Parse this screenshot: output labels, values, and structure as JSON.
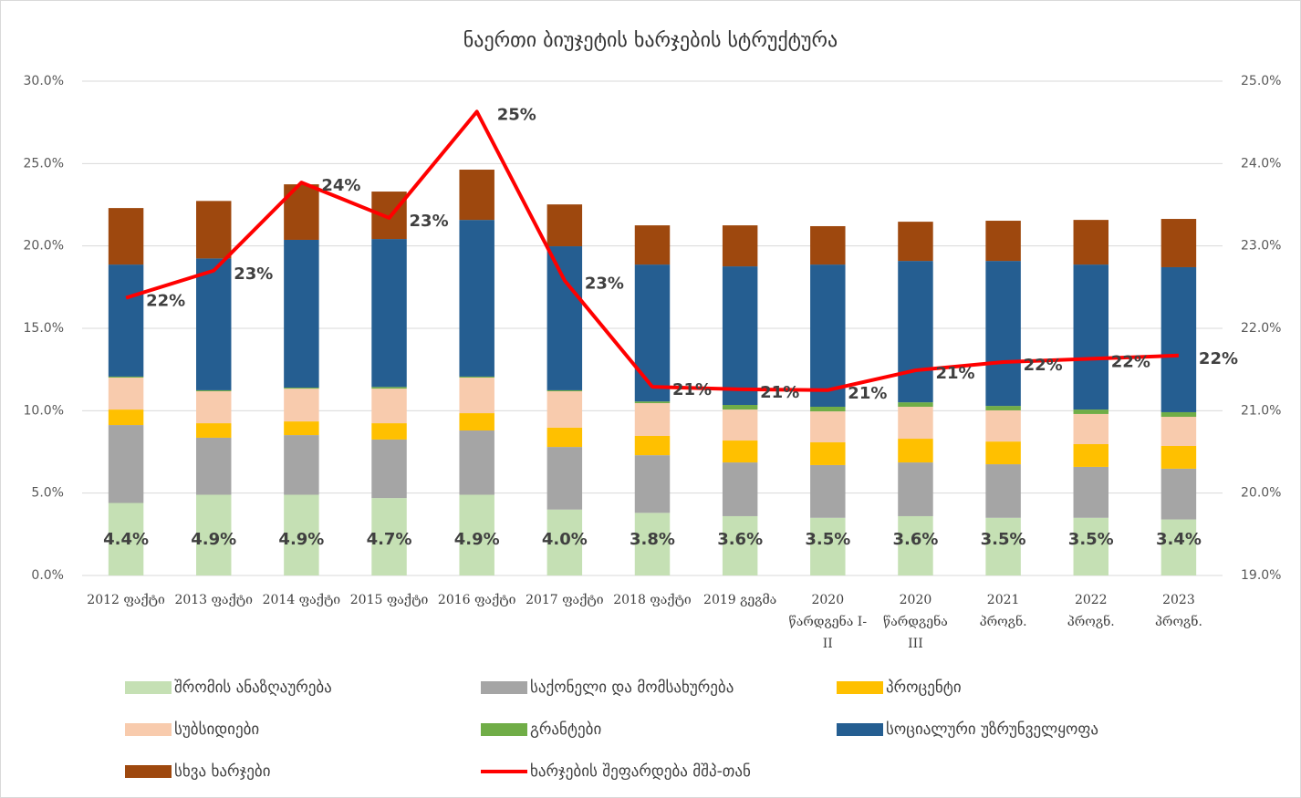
{
  "chart_data": {
    "type": "bar",
    "stacked": true,
    "title": "ნაერთი ბიუჯეტის ხარჯების სტრუქტურა",
    "categories": [
      "2012 ფაქტი",
      "2013 ფაქტი",
      "2014 ფაქტი",
      "2015 ფაქტი",
      "2016 ფაქტი",
      "2017 ფაქტი",
      "2018 ფაქტი",
      "2019 გეგმა",
      "2020 წარდგენა I-II",
      "2020 წარდგენა III",
      "2021 პროგნ.",
      "2022 პროგნ.",
      "2023 პროგნ."
    ],
    "series": [
      {
        "name": "შრომის ანაზღაურება",
        "color": "#c5e0b4",
        "values": [
          4.4,
          4.9,
          4.9,
          4.7,
          4.9,
          4.0,
          3.8,
          3.6,
          3.5,
          3.6,
          3.5,
          3.5,
          3.4
        ],
        "value_labels": [
          "4.4%",
          "4.9%",
          "4.9%",
          "4.7%",
          "4.9%",
          "4.0%",
          "3.8%",
          "3.6%",
          "3.5%",
          "3.6%",
          "3.5%",
          "3.5%",
          "3.4%"
        ]
      },
      {
        "name": "საქონელი და მომსახურება",
        "color": "#a5a5a5",
        "values": [
          4.73,
          3.46,
          3.62,
          3.55,
          3.9,
          3.8,
          3.5,
          3.26,
          3.2,
          3.26,
          3.25,
          3.09,
          3.08
        ]
      },
      {
        "name": "პროცენტი",
        "color": "#ffc000",
        "values": [
          0.94,
          0.88,
          0.83,
          0.99,
          1.05,
          1.17,
          1.17,
          1.33,
          1.38,
          1.44,
          1.38,
          1.38,
          1.38
        ]
      },
      {
        "name": "სუბსიდიები",
        "color": "#f8cbad",
        "values": [
          1.94,
          1.94,
          1.99,
          2.1,
          2.16,
          2.21,
          1.99,
          1.88,
          1.88,
          1.94,
          1.89,
          1.83,
          1.77
        ]
      },
      {
        "name": "გრანტები",
        "color": "#70ad47",
        "values": [
          0.06,
          0.06,
          0.06,
          0.1,
          0.06,
          0.06,
          0.1,
          0.28,
          0.28,
          0.27,
          0.27,
          0.27,
          0.28
        ]
      },
      {
        "name": "სოციალური უზრუნველყოფა",
        "color": "#255e91",
        "values": [
          6.8,
          8.0,
          8.97,
          8.98,
          9.51,
          8.74,
          8.31,
          8.41,
          8.63,
          8.58,
          8.8,
          8.8,
          8.8
        ]
      },
      {
        "name": "სხვა ხარჯები",
        "color": "#9e480e",
        "values": [
          3.43,
          3.49,
          3.37,
          2.88,
          3.05,
          2.54,
          2.38,
          2.49,
          2.33,
          2.38,
          2.44,
          2.71,
          2.93
        ]
      },
      {
        "name": "ხარჯების შეფარდება მშპ-თან",
        "color": "#ff0000",
        "type": "line",
        "axis": "y2",
        "values": [
          22.37,
          22.7,
          23.77,
          23.34,
          24.63,
          22.58,
          21.29,
          21.26,
          21.25,
          21.49,
          21.59,
          21.63,
          21.67
        ],
        "value_labels": [
          "22%",
          "23%",
          "24%",
          "23%",
          "25%",
          "23%",
          "21%",
          "21%",
          "21%",
          "21%",
          "22%",
          "22%",
          "22%"
        ]
      }
    ],
    "ylim": [
      0,
      30
    ],
    "yticks": [
      {
        "value": 0,
        "label": "0.0%"
      },
      {
        "value": 5,
        "label": "5.0%"
      },
      {
        "value": 10,
        "label": "10.0%"
      },
      {
        "value": 15,
        "label": "15.0%"
      },
      {
        "value": 20,
        "label": "20.0%"
      },
      {
        "value": 25,
        "label": "25.0%"
      },
      {
        "value": 30,
        "label": "30.0%"
      }
    ],
    "y2lim": [
      19,
      25
    ],
    "y2ticks": [
      {
        "value": 19,
        "label": "19.0%"
      },
      {
        "value": 20,
        "label": "20.0%"
      },
      {
        "value": 21,
        "label": "21.0%"
      },
      {
        "value": 22,
        "label": "22.0%"
      },
      {
        "value": 23,
        "label": "23.0%"
      },
      {
        "value": 24,
        "label": "24.0%"
      },
      {
        "value": 25,
        "label": "25.0%"
      }
    ],
    "grid": true
  }
}
